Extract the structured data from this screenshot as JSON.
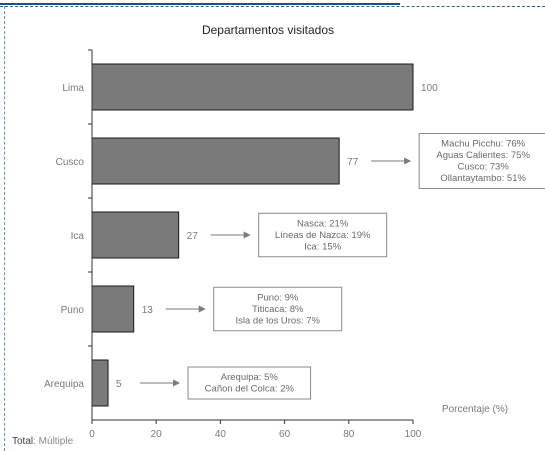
{
  "chart_data": {
    "type": "bar",
    "orientation": "horizontal",
    "title": "Departamentos visitados",
    "xlabel": "Porcentaje (%)",
    "ylabel": "",
    "xlim": [
      0,
      100
    ],
    "xticks": [
      0,
      20,
      40,
      60,
      80,
      100
    ],
    "grid": false,
    "categories": [
      "Lima",
      "Cusco",
      "Ica",
      "Puno",
      "Arequipa"
    ],
    "values": [
      100,
      77,
      27,
      13,
      5
    ],
    "bar_color": "#7a7a7a",
    "annotations": [
      {
        "category": "Lima",
        "lines": []
      },
      {
        "category": "Cusco",
        "lines": [
          "Machu Picchu: 76%",
          "Aguas Calientes: 75%",
          "Cusco: 73%",
          "Ollantaytambo: 51%"
        ]
      },
      {
        "category": "Ica",
        "lines": [
          "Nasca: 21%",
          "Líneas de Nazca: 19%",
          "Ica: 15%"
        ]
      },
      {
        "category": "Puno",
        "lines": [
          "Puno: 9%",
          "Titicaca: 8%",
          "Isla de los Uros: 7%"
        ]
      },
      {
        "category": "Arequipa",
        "lines": [
          "Arequipa: 5%",
          "Cañon del Colca: 2%"
        ]
      }
    ]
  },
  "footer": {
    "label": "Total",
    "value": ": Múltiple"
  }
}
